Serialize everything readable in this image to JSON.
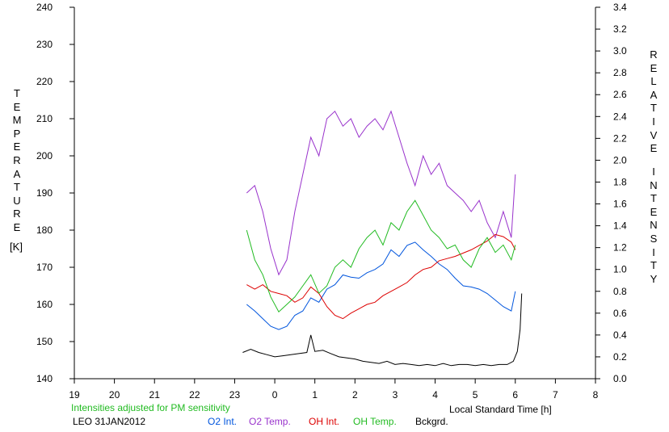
{
  "chart_data": {
    "type": "line",
    "x_axis": {
      "label": "Local Standard Time [h]",
      "ticks": [
        {
          "pos": 19,
          "text": "19"
        },
        {
          "pos": 20,
          "text": "20"
        },
        {
          "pos": 21,
          "text": "21"
        },
        {
          "pos": 22,
          "text": "22"
        },
        {
          "pos": 23,
          "text": "23"
        },
        {
          "pos": 24,
          "text": "0"
        },
        {
          "pos": 25,
          "text": "1"
        },
        {
          "pos": 26,
          "text": "2"
        },
        {
          "pos": 27,
          "text": "3"
        },
        {
          "pos": 28,
          "text": "4"
        },
        {
          "pos": 29,
          "text": "5"
        },
        {
          "pos": 30,
          "text": "6"
        },
        {
          "pos": 31,
          "text": "7"
        },
        {
          "pos": 32,
          "text": "8"
        }
      ],
      "range": [
        19,
        32
      ]
    },
    "y_left": {
      "label_letters": [
        "T",
        "E",
        "M",
        "P",
        "E",
        "R",
        "A",
        "T",
        "U",
        "R",
        "E"
      ],
      "unit": "[K]",
      "ticks": [
        140,
        150,
        160,
        170,
        180,
        190,
        200,
        210,
        220,
        230,
        240
      ],
      "range": [
        140,
        240
      ]
    },
    "y_right": {
      "label_letters_1": [
        "R",
        "E",
        "L",
        "A",
        "T",
        "I",
        "V",
        "E"
      ],
      "label_letters_2": [
        "I",
        "N",
        "T",
        "E",
        "N",
        "S",
        "I",
        "T",
        "Y"
      ],
      "ticks": [
        "0.0",
        "0.2",
        "0.4",
        "0.6",
        "0.8",
        "1.0",
        "1.2",
        "1.4",
        "1.6",
        "1.8",
        "2.0",
        "2.2",
        "2.4",
        "2.6",
        "2.8",
        "3.0",
        "3.2",
        "3.4"
      ],
      "range": [
        0,
        3.4
      ]
    },
    "note": "Intensities adjusted for PM sensitivity",
    "station": "LEO 31JAN2012",
    "colors": {
      "o2int": "#0055dd",
      "o2temp": "#9933cc",
      "ohint": "#dd0000",
      "ohtemp": "#22bb22",
      "bck": "#000000",
      "note": "#22bb22"
    },
    "series": [
      {
        "key": "o2int",
        "name": "O2 Int.",
        "axis": "right",
        "x": [
          23.3,
          23.5,
          23.7,
          23.9,
          24.1,
          24.3,
          24.5,
          24.7,
          24.9,
          25.1,
          25.3,
          25.5,
          25.7,
          25.9,
          26.1,
          26.3,
          26.5,
          26.7,
          26.9,
          27.1,
          27.3,
          27.5,
          27.7,
          27.9,
          28.1,
          28.3,
          28.5,
          28.7,
          28.9,
          29.1,
          29.3,
          29.5,
          29.7,
          29.9,
          30.0
        ],
        "y": [
          0.68,
          0.62,
          0.55,
          0.48,
          0.45,
          0.48,
          0.58,
          0.62,
          0.74,
          0.7,
          0.82,
          0.86,
          0.95,
          0.93,
          0.92,
          0.97,
          1.0,
          1.05,
          1.18,
          1.12,
          1.22,
          1.25,
          1.18,
          1.12,
          1.05,
          1.0,
          0.92,
          0.85,
          0.84,
          0.82,
          0.78,
          0.72,
          0.66,
          0.62,
          0.8
        ]
      },
      {
        "key": "o2temp",
        "name": "O2 Temp.",
        "axis": "left",
        "x": [
          23.3,
          23.5,
          23.7,
          23.9,
          24.1,
          24.3,
          24.5,
          24.7,
          24.9,
          25.1,
          25.3,
          25.5,
          25.7,
          25.9,
          26.1,
          26.3,
          26.5,
          26.7,
          26.9,
          27.1,
          27.3,
          27.5,
          27.7,
          27.9,
          28.1,
          28.3,
          28.5,
          28.7,
          28.9,
          29.1,
          29.3,
          29.5,
          29.7,
          29.9,
          30.0
        ],
        "y": [
          190,
          192,
          185,
          175,
          168,
          172,
          185,
          195,
          205,
          200,
          210,
          212,
          208,
          210,
          205,
          208,
          210,
          207,
          212,
          205,
          198,
          192,
          200,
          195,
          198,
          192,
          190,
          188,
          185,
          188,
          182,
          178,
          185,
          178,
          195
        ]
      },
      {
        "key": "ohint",
        "name": "OH Int.",
        "axis": "right",
        "x": [
          23.3,
          23.5,
          23.7,
          23.9,
          24.1,
          24.3,
          24.5,
          24.7,
          24.9,
          25.1,
          25.3,
          25.5,
          25.7,
          25.9,
          26.1,
          26.3,
          26.5,
          26.7,
          26.9,
          27.1,
          27.3,
          27.5,
          27.7,
          27.9,
          28.1,
          28.3,
          28.5,
          28.7,
          28.9,
          29.1,
          29.3,
          29.5,
          29.7,
          29.9,
          30.0
        ],
        "y": [
          0.86,
          0.82,
          0.86,
          0.8,
          0.78,
          0.76,
          0.7,
          0.74,
          0.84,
          0.78,
          0.66,
          0.58,
          0.55,
          0.6,
          0.64,
          0.68,
          0.7,
          0.76,
          0.8,
          0.84,
          0.88,
          0.95,
          1.0,
          1.02,
          1.08,
          1.1,
          1.12,
          1.15,
          1.18,
          1.22,
          1.26,
          1.32,
          1.3,
          1.25,
          1.18
        ]
      },
      {
        "key": "ohtemp",
        "name": "OH Temp.",
        "axis": "left",
        "x": [
          23.3,
          23.5,
          23.7,
          23.9,
          24.1,
          24.3,
          24.5,
          24.7,
          24.9,
          25.1,
          25.3,
          25.5,
          25.7,
          25.9,
          26.1,
          26.3,
          26.5,
          26.7,
          26.9,
          27.1,
          27.3,
          27.5,
          27.7,
          27.9,
          28.1,
          28.3,
          28.5,
          28.7,
          28.9,
          29.1,
          29.3,
          29.5,
          29.7,
          29.9,
          30.0
        ],
        "y": [
          180,
          172,
          168,
          162,
          158,
          160,
          162,
          165,
          168,
          163,
          165,
          170,
          172,
          170,
          175,
          178,
          180,
          176,
          182,
          180,
          185,
          188,
          184,
          180,
          178,
          175,
          176,
          172,
          170,
          175,
          178,
          174,
          176,
          172,
          176
        ]
      },
      {
        "key": "bck",
        "name": "Bckgrd.",
        "axis": "right",
        "x": [
          23.2,
          23.4,
          23.6,
          23.8,
          24.0,
          24.2,
          24.4,
          24.6,
          24.8,
          24.9,
          25.0,
          25.2,
          25.4,
          25.6,
          25.8,
          26.0,
          26.2,
          26.4,
          26.6,
          26.8,
          27.0,
          27.2,
          27.4,
          27.6,
          27.8,
          28.0,
          28.2,
          28.4,
          28.6,
          28.8,
          29.0,
          29.2,
          29.4,
          29.6,
          29.8,
          29.95,
          30.05,
          30.12,
          30.16
        ],
        "y": [
          0.24,
          0.27,
          0.24,
          0.22,
          0.2,
          0.21,
          0.22,
          0.23,
          0.24,
          0.4,
          0.25,
          0.26,
          0.23,
          0.2,
          0.19,
          0.18,
          0.16,
          0.15,
          0.14,
          0.16,
          0.13,
          0.14,
          0.13,
          0.12,
          0.13,
          0.12,
          0.14,
          0.12,
          0.13,
          0.13,
          0.12,
          0.13,
          0.12,
          0.13,
          0.13,
          0.16,
          0.25,
          0.45,
          0.78
        ]
      }
    ]
  }
}
